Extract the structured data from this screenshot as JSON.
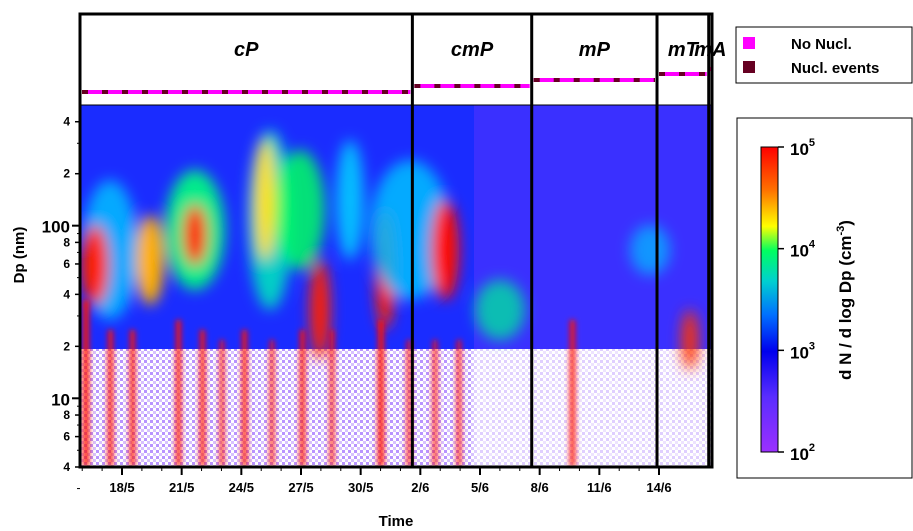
{
  "chart_data": {
    "type": "heatmap",
    "title": "",
    "xlabel": "Time",
    "ylabel": "Dp  (nm)",
    "x_ticks": [
      "18/5",
      "21/5",
      "24/5",
      "27/5",
      "30/5",
      "2/6",
      "5/6",
      "8/6",
      "11/6",
      "14/6"
    ],
    "x_tick_days": [
      3,
      6,
      9,
      12,
      15,
      18,
      21,
      24,
      27,
      30
    ],
    "x_range_days": [
      0,
      30
    ],
    "y_scale": "log",
    "y_range": [
      4,
      500
    ],
    "y_major_ticks": [
      "10",
      "100"
    ],
    "y_minor_ticks": [
      "4",
      "6",
      "8",
      "2",
      "4",
      "6",
      "8",
      "2",
      "4"
    ],
    "y_minor_values": [
      4,
      6,
      8,
      20,
      40,
      60,
      80,
      200,
      400
    ],
    "air_masses": [
      {
        "label": "cP",
        "start_day": -1,
        "end_day": 17.6
      },
      {
        "label": "cmP",
        "start_day": 17.6,
        "end_day": 23.6
      },
      {
        "label": "mP",
        "start_day": 23.6,
        "end_day": 29.9
      },
      {
        "label": "mT",
        "start_day": 29.9,
        "end_day": 32.5
      },
      {
        "label": "mA",
        "start_day": 32.5,
        "end_day": 38
      }
    ],
    "legend": [
      {
        "label": "No Nucl.",
        "color": "#ff00ff"
      },
      {
        "label": "Nucl.  events",
        "color": "#660022"
      }
    ],
    "colorbar": {
      "label_parts": [
        "d N / d log Dp (cm",
        "-3",
        ")"
      ],
      "scale": "log",
      "range": [
        100,
        100000
      ],
      "ticks": [
        {
          "base": "10",
          "exp": "5"
        },
        {
          "base": "10",
          "exp": "4"
        },
        {
          "base": "10",
          "exp": "3"
        },
        {
          "base": "10",
          "exp": "2"
        }
      ]
    }
  }
}
